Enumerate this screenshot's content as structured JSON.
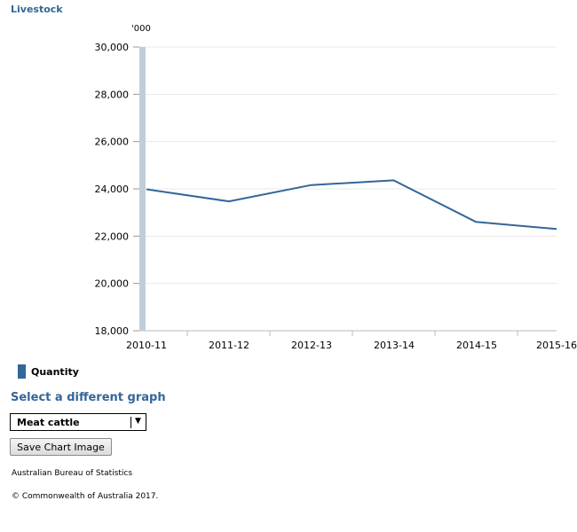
{
  "chart_data": {
    "type": "line",
    "title": "Livestock",
    "unit_label": "'000",
    "categories": [
      "2010-11",
      "2011-12",
      "2012-13",
      "2013-14",
      "2014-15",
      "2015-16"
    ],
    "series": [
      {
        "name": "Quantity",
        "values": [
          23980,
          23470,
          24160,
          24360,
          22600,
          22300
        ]
      }
    ],
    "ylim": [
      18000,
      30000
    ],
    "yticks": [
      18000,
      20000,
      22000,
      24000,
      26000,
      28000,
      30000
    ],
    "ytick_labels": [
      "18,000",
      "20,000",
      "22,000",
      "24,000",
      "26,000",
      "28,000",
      "30,000"
    ],
    "grid": true,
    "legend_position": "bottom-left",
    "colors": {
      "line": "#336699",
      "axis_band": "#c0ced9",
      "grid": "#e8e8e8"
    }
  },
  "controls": {
    "select_heading": "Select a different graph",
    "dropdown_value": "Meat cattle",
    "save_label": "Save Chart Image"
  },
  "footer": {
    "source": "Australian Bureau of Statistics",
    "copyright": "© Commonwealth of Australia 2017."
  }
}
